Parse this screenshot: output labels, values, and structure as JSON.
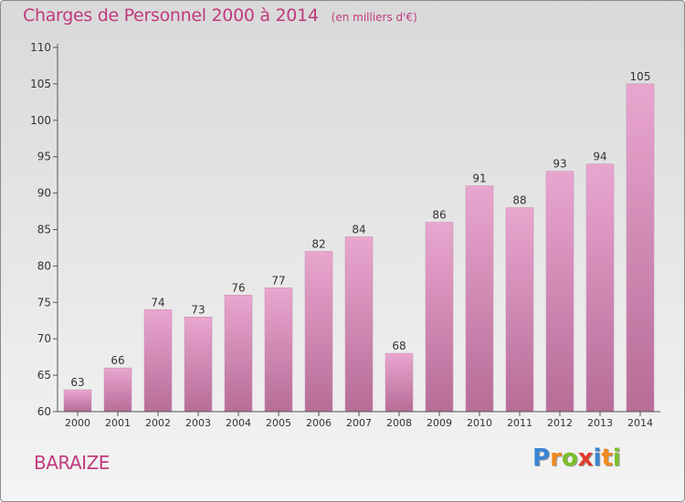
{
  "colors": {
    "accent": "#c13a7e",
    "bar_top": "#e8a6cf",
    "bar_bottom": "#b66d98",
    "axis": "#555555"
  },
  "location": "BARAIZE",
  "logo": {
    "letters": [
      "P",
      "r",
      "o",
      "x",
      "i",
      "t",
      "i"
    ],
    "colors": [
      "#3a86d4",
      "#f08a1e",
      "#7cbf2a",
      "#e23a2a",
      "#3a86d4",
      "#f08a1e",
      "#7cbf2a"
    ]
  },
  "chart_data": {
    "type": "bar",
    "title": "Charges de Personnel 2000 à 2014",
    "subtitle": "(en milliers d'€)",
    "categories": [
      "2000",
      "2001",
      "2002",
      "2003",
      "2004",
      "2005",
      "2006",
      "2007",
      "2008",
      "2009",
      "2010",
      "2011",
      "2012",
      "2013",
      "2014"
    ],
    "values": [
      63,
      66,
      74,
      73,
      76,
      77,
      82,
      84,
      68,
      86,
      91,
      88,
      93,
      94,
      105
    ],
    "ylim": [
      60,
      110
    ],
    "yticks": [
      60,
      65,
      70,
      75,
      80,
      85,
      90,
      95,
      100,
      105,
      110
    ],
    "grid": false,
    "xlabel": "",
    "ylabel": ""
  }
}
